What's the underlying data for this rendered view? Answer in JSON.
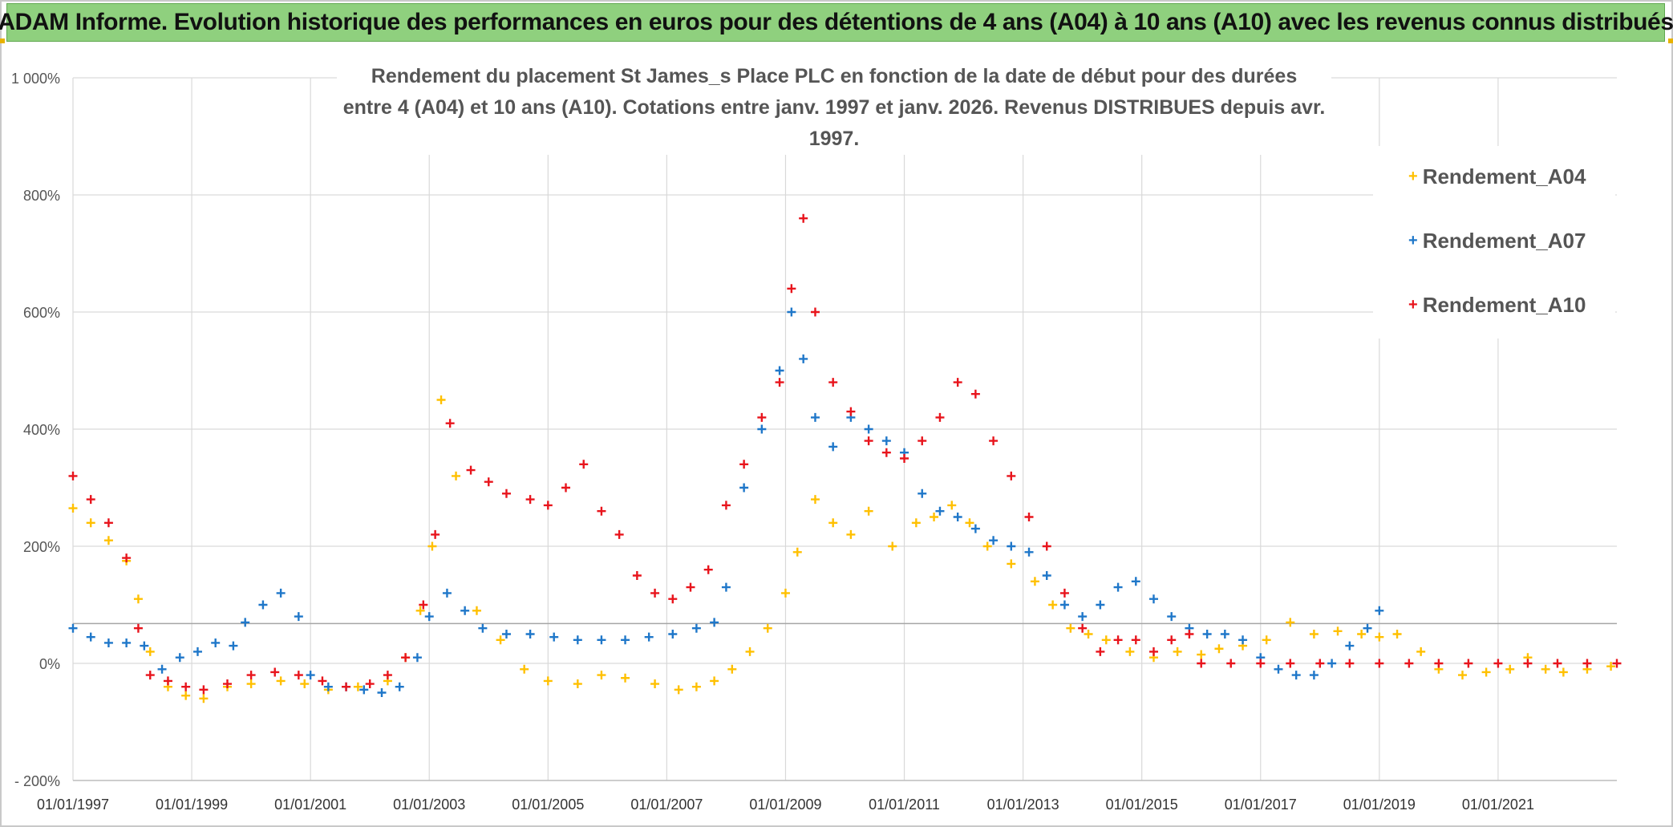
{
  "banner_title": "ADAM Informe. Evolution historique des performances en euros pour des détentions de 4 ans (A04) à 10 ans (A10) avec les revenus connus distribués",
  "chart_data": {
    "type": "scatter",
    "title_line1": "Rendement du placement St James_s Place PLC en fonction de la date de début pour des durées",
    "title_line2": "entre 4 (A04) et 10 ans (A10). Cotations entre janv. 1997 et janv. 2026. Revenus DISTRIBUES depuis avr. 1997.",
    "xlabel": "",
    "ylabel": "",
    "x_range": [
      1997.0,
      2023.0
    ],
    "ylim": [
      -200,
      1000
    ],
    "y_ticks": [
      -200,
      0,
      200,
      400,
      600,
      800,
      1000
    ],
    "y_tick_labels": [
      "- 200%",
      "0%",
      "200%",
      "400%",
      "600%",
      "800%",
      "1 000%"
    ],
    "x_ticks": [
      1997,
      1999,
      2001,
      2003,
      2005,
      2007,
      2009,
      2011,
      2013,
      2015,
      2017,
      2019,
      2021
    ],
    "x_tick_labels": [
      "01/01/1997",
      "01/01/1999",
      "01/01/2001",
      "01/01/2003",
      "01/01/2005",
      "01/01/2007",
      "01/01/2009",
      "01/01/2011",
      "01/01/2013",
      "01/01/2015",
      "01/01/2017",
      "01/01/2019",
      "01/01/2021"
    ],
    "reference_line_y": 68,
    "marker": "+",
    "legend_position": "top-right",
    "series": [
      {
        "name": "Rendement_A04",
        "color": "#FFC000",
        "x": [
          1997.0,
          1997.3,
          1997.6,
          1997.9,
          1998.1,
          1998.3,
          1998.6,
          1998.9,
          1999.2,
          1999.6,
          2000.0,
          2000.5,
          2000.9,
          2001.3,
          2001.8,
          2002.3,
          2002.6,
          2002.85,
          2003.05,
          2003.2,
          2003.45,
          2003.8,
          2004.2,
          2004.6,
          2005.0,
          2005.5,
          2005.9,
          2006.3,
          2006.8,
          2007.2,
          2007.5,
          2007.8,
          2008.1,
          2008.4,
          2008.7,
          2009.0,
          2009.2,
          2009.5,
          2009.8,
          2010.1,
          2010.4,
          2010.8,
          2011.2,
          2011.5,
          2011.8,
          2012.1,
          2012.4,
          2012.8,
          2013.2,
          2013.5,
          2013.8,
          2014.1,
          2014.4,
          2014.8,
          2015.2,
          2015.6,
          2016.0,
          2016.3,
          2016.7,
          2017.1,
          2017.5,
          2017.9,
          2018.3,
          2018.7,
          2019.0,
          2019.3,
          2019.7,
          2020.0,
          2020.4,
          2020.8,
          2021.2,
          2021.5,
          2021.8,
          2022.1,
          2022.5,
          2022.9
        ],
        "y": [
          265,
          240,
          210,
          175,
          110,
          20,
          -40,
          -55,
          -60,
          -40,
          -35,
          -30,
          -35,
          -45,
          -40,
          -30,
          10,
          90,
          200,
          450,
          320,
          90,
          40,
          -10,
          -30,
          -35,
          -20,
          -25,
          -35,
          -45,
          -40,
          -30,
          -10,
          20,
          60,
          120,
          190,
          280,
          240,
          220,
          260,
          200,
          240,
          250,
          270,
          240,
          200,
          170,
          140,
          100,
          60,
          50,
          40,
          20,
          10,
          20,
          15,
          25,
          30,
          40,
          70,
          50,
          55,
          50,
          45,
          50,
          20,
          -10,
          -20,
          -15,
          -10,
          10,
          -10,
          -15,
          -10,
          -5
        ]
      },
      {
        "name": "Rendement_A07",
        "color": "#1F77C9",
        "x": [
          1997.0,
          1997.3,
          1997.6,
          1997.9,
          1998.2,
          1998.5,
          1998.8,
          1999.1,
          1999.4,
          1999.7,
          1999.9,
          2000.2,
          2000.5,
          2000.8,
          2001.0,
          2001.3,
          2001.6,
          2001.9,
          2002.2,
          2002.5,
          2002.8,
          2003.0,
          2003.3,
          2003.6,
          2003.9,
          2004.3,
          2004.7,
          2005.1,
          2005.5,
          2005.9,
          2006.3,
          2006.7,
          2007.1,
          2007.5,
          2007.8,
          2008.0,
          2008.3,
          2008.6,
          2008.9,
          2009.1,
          2009.3,
          2009.5,
          2009.8,
          2010.1,
          2010.4,
          2010.7,
          2011.0,
          2011.3,
          2011.6,
          2011.9,
          2012.2,
          2012.5,
          2012.8,
          2013.1,
          2013.4,
          2013.7,
          2014.0,
          2014.3,
          2014.6,
          2014.9,
          2015.2,
          2015.5,
          2015.8,
          2016.1,
          2016.4,
          2016.7,
          2017.0,
          2017.3,
          2017.6,
          2017.9,
          2018.2,
          2018.5,
          2018.8,
          2019.0
        ],
        "y": [
          60,
          45,
          35,
          35,
          30,
          -10,
          10,
          20,
          35,
          30,
          70,
          100,
          120,
          80,
          -20,
          -40,
          -40,
          -45,
          -50,
          -40,
          10,
          80,
          120,
          90,
          60,
          50,
          50,
          45,
          40,
          40,
          40,
          45,
          50,
          60,
          70,
          130,
          300,
          400,
          500,
          600,
          520,
          420,
          370,
          420,
          400,
          380,
          360,
          290,
          260,
          250,
          230,
          210,
          200,
          190,
          150,
          100,
          80,
          100,
          130,
          140,
          110,
          80,
          60,
          50,
          50,
          40,
          10,
          -10,
          -20,
          -20,
          0,
          30,
          60,
          90
        ]
      },
      {
        "name": "Rendement_A10",
        "color": "#E8141C",
        "x": [
          1997.0,
          1997.3,
          1997.6,
          1997.9,
          1998.1,
          1998.3,
          1998.6,
          1998.9,
          1999.2,
          1999.6,
          2000.0,
          2000.4,
          2000.8,
          2001.2,
          2001.6,
          2002.0,
          2002.3,
          2002.6,
          2002.9,
          2003.1,
          2003.35,
          2003.7,
          2004.0,
          2004.3,
          2004.7,
          2005.0,
          2005.3,
          2005.6,
          2005.9,
          2006.2,
          2006.5,
          2006.8,
          2007.1,
          2007.4,
          2007.7,
          2008.0,
          2008.3,
          2008.6,
          2008.9,
          2009.1,
          2009.3,
          2009.5,
          2009.8,
          2010.1,
          2010.4,
          2010.7,
          2011.0,
          2011.3,
          2011.6,
          2011.9,
          2012.2,
          2012.5,
          2012.8,
          2013.1,
          2013.4,
          2013.7,
          2014.0,
          2014.3,
          2014.6,
          2014.9,
          2015.2,
          2015.5,
          2015.8,
          2016.0,
          2016.5,
          2017.0,
          2017.5,
          2018.0,
          2018.5,
          2019.0,
          2019.5,
          2020.0,
          2020.5,
          2021.0,
          2021.5,
          2022.0,
          2022.5,
          2023.0
        ],
        "y": [
          320,
          280,
          240,
          180,
          60,
          -20,
          -30,
          -40,
          -45,
          -35,
          -20,
          -15,
          -20,
          -30,
          -40,
          -35,
          -20,
          10,
          100,
          220,
          410,
          330,
          310,
          290,
          280,
          270,
          300,
          340,
          260,
          220,
          150,
          120,
          110,
          130,
          160,
          270,
          340,
          420,
          480,
          640,
          760,
          600,
          480,
          430,
          380,
          360,
          350,
          380,
          420,
          480,
          460,
          380,
          320,
          250,
          200,
          120,
          60,
          20,
          40,
          40,
          20,
          40,
          50,
          0,
          0,
          0,
          0,
          0,
          0,
          0,
          0,
          0,
          0,
          0,
          0,
          0,
          0,
          0
        ]
      }
    ]
  }
}
